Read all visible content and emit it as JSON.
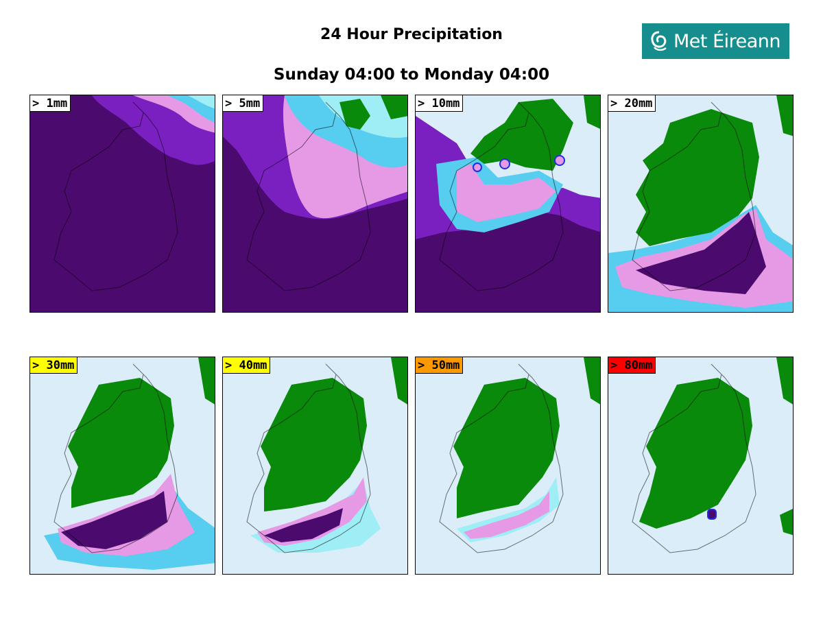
{
  "title": "24 Hour Precipitation",
  "subtitle": "Sunday 04:00 to Monday 04:00",
  "logo_text": "Met Éireann",
  "colors": {
    "logo_bg": "#178e8e",
    "land": "#0a8a0a",
    "sea": "#dcedfa",
    "cyan_light": "#9feef5",
    "cyan": "#57cdf0",
    "blue": "#1e2ee6",
    "pink": "#e69ae6",
    "violet": "#9a3ce0",
    "purple": "#7a1fc0",
    "dark_purple": "#4b0a6e"
  },
  "panels": [
    {
      "label": "> 1mm",
      "label_bg": "#ffffff",
      "coverage": "all"
    },
    {
      "label": "> 5mm",
      "label_bg": "#ffffff",
      "coverage": "most"
    },
    {
      "label": "> 10mm",
      "label_bg": "#ffffff",
      "coverage": "south-half"
    },
    {
      "label": "> 20mm",
      "label_bg": "#ffffff",
      "coverage": "south-coast"
    },
    {
      "label": "> 30mm",
      "label_bg": "#ffff00",
      "coverage": "southwest"
    },
    {
      "label": "> 40mm",
      "label_bg": "#ffff00",
      "coverage": "southwest-narrow"
    },
    {
      "label": "> 50mm",
      "label_bg": "#ff9900",
      "coverage": "south-strip"
    },
    {
      "label": "> 80mm",
      "label_bg": "#ff0000",
      "coverage": "spot"
    }
  ]
}
